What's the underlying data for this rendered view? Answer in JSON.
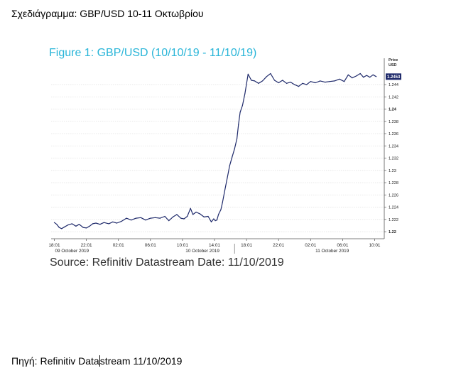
{
  "document": {
    "heading": "Σχεδιάγραμμα:  GBP/USD 10-11 Οκτωβρίου",
    "source_prefix": "Πηγή: Refinitiv Data",
    "source_suffix": "stream 11/10/2019"
  },
  "chart_data": {
    "type": "line",
    "title": "Figure 1: GBP/USD (10/10/19 - 11/10/19)",
    "source": "Source: Refinitiv Datastream Date: 11/10/2019",
    "ylabel": "Price",
    "yunit": "USD",
    "ylim": [
      1.2192,
      1.2476
    ],
    "y_ticks": [
      1.22,
      1.222,
      1.224,
      1.226,
      1.228,
      1.23,
      1.232,
      1.234,
      1.236,
      1.238,
      1.24,
      1.242,
      1.244
    ],
    "y_tick_labels": [
      "1.22",
      "1.222",
      "1.224",
      "1.226",
      "1.228",
      "1.23",
      "1.232",
      "1.234",
      "1.236",
      "1.238",
      "1.24",
      "1.242",
      "1.244"
    ],
    "bold_ticks": [
      "1.22",
      "1.24"
    ],
    "last_value_label": "1.2453",
    "last_value": 1.2453,
    "x_tick_labels": [
      "18:01",
      "22:01",
      "02:01",
      "06:01",
      "10:01",
      "14:01",
      "18:01",
      "22:01",
      "02:01",
      "06:01",
      "10:01"
    ],
    "x_tick_hours": [
      0,
      4,
      8,
      12,
      16,
      20,
      24,
      28,
      32,
      36,
      40
    ],
    "date_labels": [
      {
        "text": "09 October 2019",
        "hour": 2.2
      },
      {
        "text": "10 October 2019",
        "hour": 18.5
      },
      {
        "text": "11 October 2019",
        "hour": 34.7
      }
    ],
    "xlim": [
      -0.4,
      41.2
    ],
    "grid": true,
    "x_unit": "hours since 18:01 on 09 October 2019",
    "series": [
      {
        "color": "#1f2a6b",
        "x": [
          0,
          0.3,
          0.6,
          0.9,
          1.3,
          1.7,
          2.2,
          2.7,
          3.1,
          3.6,
          4.0,
          4.4,
          4.8,
          5.2,
          5.7,
          6.2,
          6.8,
          7.3,
          7.8,
          8.4,
          9.0,
          9.6,
          10.2,
          10.8,
          11.4,
          12.0,
          12.6,
          13.2,
          13.8,
          14.3,
          14.8,
          15.3,
          15.8,
          16.2,
          16.6,
          17.0,
          17.3,
          17.7,
          18.2,
          18.7,
          19.2,
          19.6,
          19.9,
          20.1,
          20.3,
          20.5,
          20.8,
          21.0,
          21.3,
          21.6,
          21.9,
          22.2,
          22.5,
          22.8,
          23.0,
          23.2,
          23.5,
          23.8,
          24.2,
          24.6,
          25.0,
          25.5,
          26.0,
          26.5,
          27.0,
          27.5,
          28.0,
          28.5,
          29.0,
          29.5,
          30.0,
          30.5,
          31.0,
          31.5,
          32.0,
          32.6,
          33.2,
          33.8,
          34.4,
          35.0,
          35.6,
          36.2,
          36.7,
          37.2,
          37.7,
          38.2,
          38.6,
          39.0,
          39.4,
          39.8,
          40.2
        ],
        "y": [
          1.2215,
          1.2212,
          1.2207,
          1.2205,
          1.2208,
          1.2211,
          1.2213,
          1.2209,
          1.2212,
          1.2207,
          1.2206,
          1.2209,
          1.2213,
          1.2214,
          1.2212,
          1.2215,
          1.2213,
          1.2216,
          1.2214,
          1.2217,
          1.2222,
          1.2219,
          1.2222,
          1.2223,
          1.2219,
          1.2222,
          1.2223,
          1.2222,
          1.2225,
          1.2218,
          1.2224,
          1.2228,
          1.2222,
          1.2221,
          1.2225,
          1.2238,
          1.2228,
          1.2232,
          1.2229,
          1.2224,
          1.2225,
          1.2216,
          1.2221,
          1.2218,
          1.2219,
          1.2228,
          1.2236,
          1.2248,
          1.2268,
          1.2288,
          1.2308,
          1.2322,
          1.2335,
          1.2352,
          1.2375,
          1.2395,
          1.2406,
          1.2425,
          1.2457,
          1.2447,
          1.2446,
          1.2442,
          1.2446,
          1.2453,
          1.2458,
          1.2447,
          1.2443,
          1.2447,
          1.2442,
          1.2444,
          1.244,
          1.2437,
          1.2442,
          1.244,
          1.2445,
          1.2443,
          1.2446,
          1.2444,
          1.2445,
          1.2446,
          1.2449,
          1.2445,
          1.2456,
          1.2451,
          1.2454,
          1.2458,
          1.2452,
          1.2455,
          1.2452,
          1.2456,
          1.2453
        ]
      }
    ]
  }
}
